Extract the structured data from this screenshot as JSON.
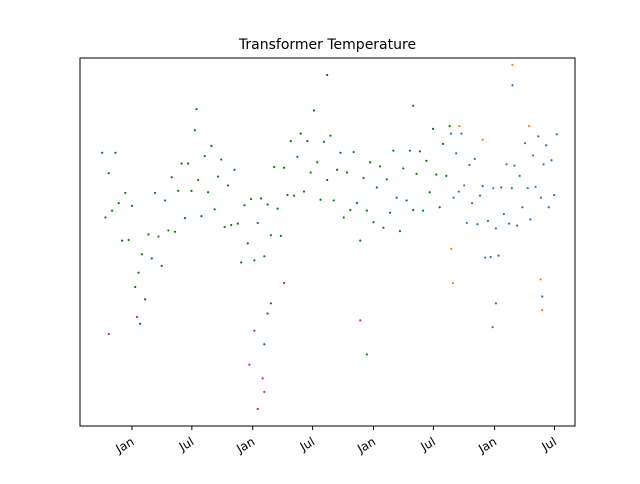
{
  "chart_data": {
    "type": "scatter",
    "title": "Transformer Temperature",
    "xlim": [
      -157,
      1339
    ],
    "ylim": [
      -6,
      48
    ],
    "xticks": [
      {
        "value": 0,
        "label": "Jan"
      },
      {
        "value": 181,
        "label": "Jul"
      },
      {
        "value": 365,
        "label": "Jan"
      },
      {
        "value": 546,
        "label": "Jul"
      },
      {
        "value": 730,
        "label": "Jan"
      },
      {
        "value": 911,
        "label": "Jul"
      },
      {
        "value": 1096,
        "label": "Jan"
      },
      {
        "value": 1277,
        "label": "Jul"
      }
    ],
    "series": [
      {
        "color": "#d62728",
        "x": [
          -70,
          15,
          355,
          370,
          380,
          395,
          460,
          690,
          400
        ],
        "values": [
          7.5,
          10.0,
          3.0,
          8.0,
          -3.5,
          1.0,
          15.0,
          9.5,
          -1.0
        ]
      },
      {
        "color": "#ff7f0e",
        "x": [
          965,
          970,
          1060,
          1235,
          1240,
          1200,
          990,
          1150
        ],
        "values": [
          20.0,
          15.0,
          36.0,
          15.5,
          11.0,
          38.0,
          38.0,
          47.0
        ]
      },
      {
        "color": "#008000",
        "x": [
          -90,
          -80,
          -70,
          -60,
          -50,
          -40,
          -30,
          -20,
          -10,
          0,
          10,
          20,
          30,
          40,
          50,
          60,
          70,
          80,
          90,
          100,
          110,
          120,
          130,
          140,
          150,
          160,
          170,
          180,
          190,
          200,
          210,
          220,
          230,
          240,
          250,
          260,
          270,
          280,
          290,
          300,
          310,
          320,
          330,
          340,
          350,
          360,
          370,
          380,
          390,
          400,
          410,
          420,
          430,
          440,
          450,
          460,
          470,
          480,
          490,
          500,
          510,
          520,
          530,
          540,
          550,
          560,
          570,
          580,
          590,
          600,
          610,
          620,
          630,
          640,
          650,
          660,
          670,
          680,
          690,
          700,
          710,
          720,
          730,
          740,
          750,
          760,
          770,
          780,
          790,
          800,
          810,
          820,
          830,
          840,
          850,
          860,
          870,
          880,
          890,
          900,
          910,
          920,
          930,
          940,
          950,
          960,
          25,
          400,
          410,
          710,
          590,
          195,
          420,
          850
        ],
        "values": [
          34.1,
          24.6,
          31.1,
          25.6,
          34.1,
          26.7,
          21.2,
          28.2,
          21.3,
          26.3,
          14.4,
          16.5,
          19.2,
          12.6,
          22.1,
          18.6,
          28.2,
          21.8,
          17.5,
          27.1,
          22.7,
          30.5,
          22.5,
          28.5,
          32.5,
          24.5,
          32.5,
          28.5,
          37.4,
          30.1,
          24.8,
          33.6,
          28.3,
          35.1,
          25.8,
          30.6,
          33.1,
          23.2,
          29.3,
          23.5,
          31.6,
          23.7,
          18.0,
          26.4,
          20.8,
          27.3,
          18.3,
          23.8,
          27.4,
          18.9,
          26.5,
          22.0,
          32.0,
          25.9,
          21.9,
          31.9,
          27.9,
          35.8,
          27.8,
          33.5,
          36.9,
          28.4,
          35.8,
          31.2,
          40.3,
          32.7,
          27.2,
          35.7,
          30.1,
          36.6,
          27.1,
          31.6,
          34.1,
          24.6,
          31.2,
          25.7,
          34.2,
          26.7,
          21.2,
          30.4,
          25.6,
          32.7,
          23.9,
          29.0,
          32.1,
          23.1,
          30.2,
          25.3,
          34.4,
          27.5,
          22.6,
          31.8,
          27.1,
          34.4,
          25.7,
          31.0,
          34.3,
          25.6,
          32.9,
          28.3,
          37.6,
          30.9,
          26.1,
          35.4,
          30.7,
          38.0,
          9.0,
          6.0,
          10.5,
          4.5,
          45.5,
          40.5,
          12.0,
          41.0
        ]
      },
      {
        "color": "#1f77b4",
        "x": [
          964,
          972,
          980,
          988,
          996,
          1004,
          1012,
          1020,
          1028,
          1036,
          1044,
          1052,
          1060,
          1068,
          1076,
          1084,
          1092,
          1100,
          1108,
          1116,
          1124,
          1132,
          1140,
          1148,
          1156,
          1164,
          1172,
          1180,
          1188,
          1196,
          1204,
          1212,
          1220,
          1228,
          1236,
          1244,
          1252,
          1260,
          1268,
          1276,
          1284,
          1090,
          1100,
          1240,
          1150
        ],
        "values": [
          36.9,
          27.5,
          34.0,
          28.4,
          36.9,
          29.3,
          23.8,
          32.3,
          26.7,
          33.2,
          23.6,
          27.8,
          29.2,
          18.7,
          24.1,
          18.8,
          28.9,
          23.0,
          19.0,
          29.0,
          25.1,
          32.4,
          23.7,
          28.9,
          32.2,
          23.4,
          30.7,
          26.1,
          35.5,
          28.9,
          24.3,
          33.7,
          29.1,
          36.5,
          27.5,
          32.4,
          35.2,
          26.1,
          33.0,
          27.9,
          36.8,
          8.5,
          12.0,
          13.0,
          44.0
        ]
      }
    ]
  }
}
